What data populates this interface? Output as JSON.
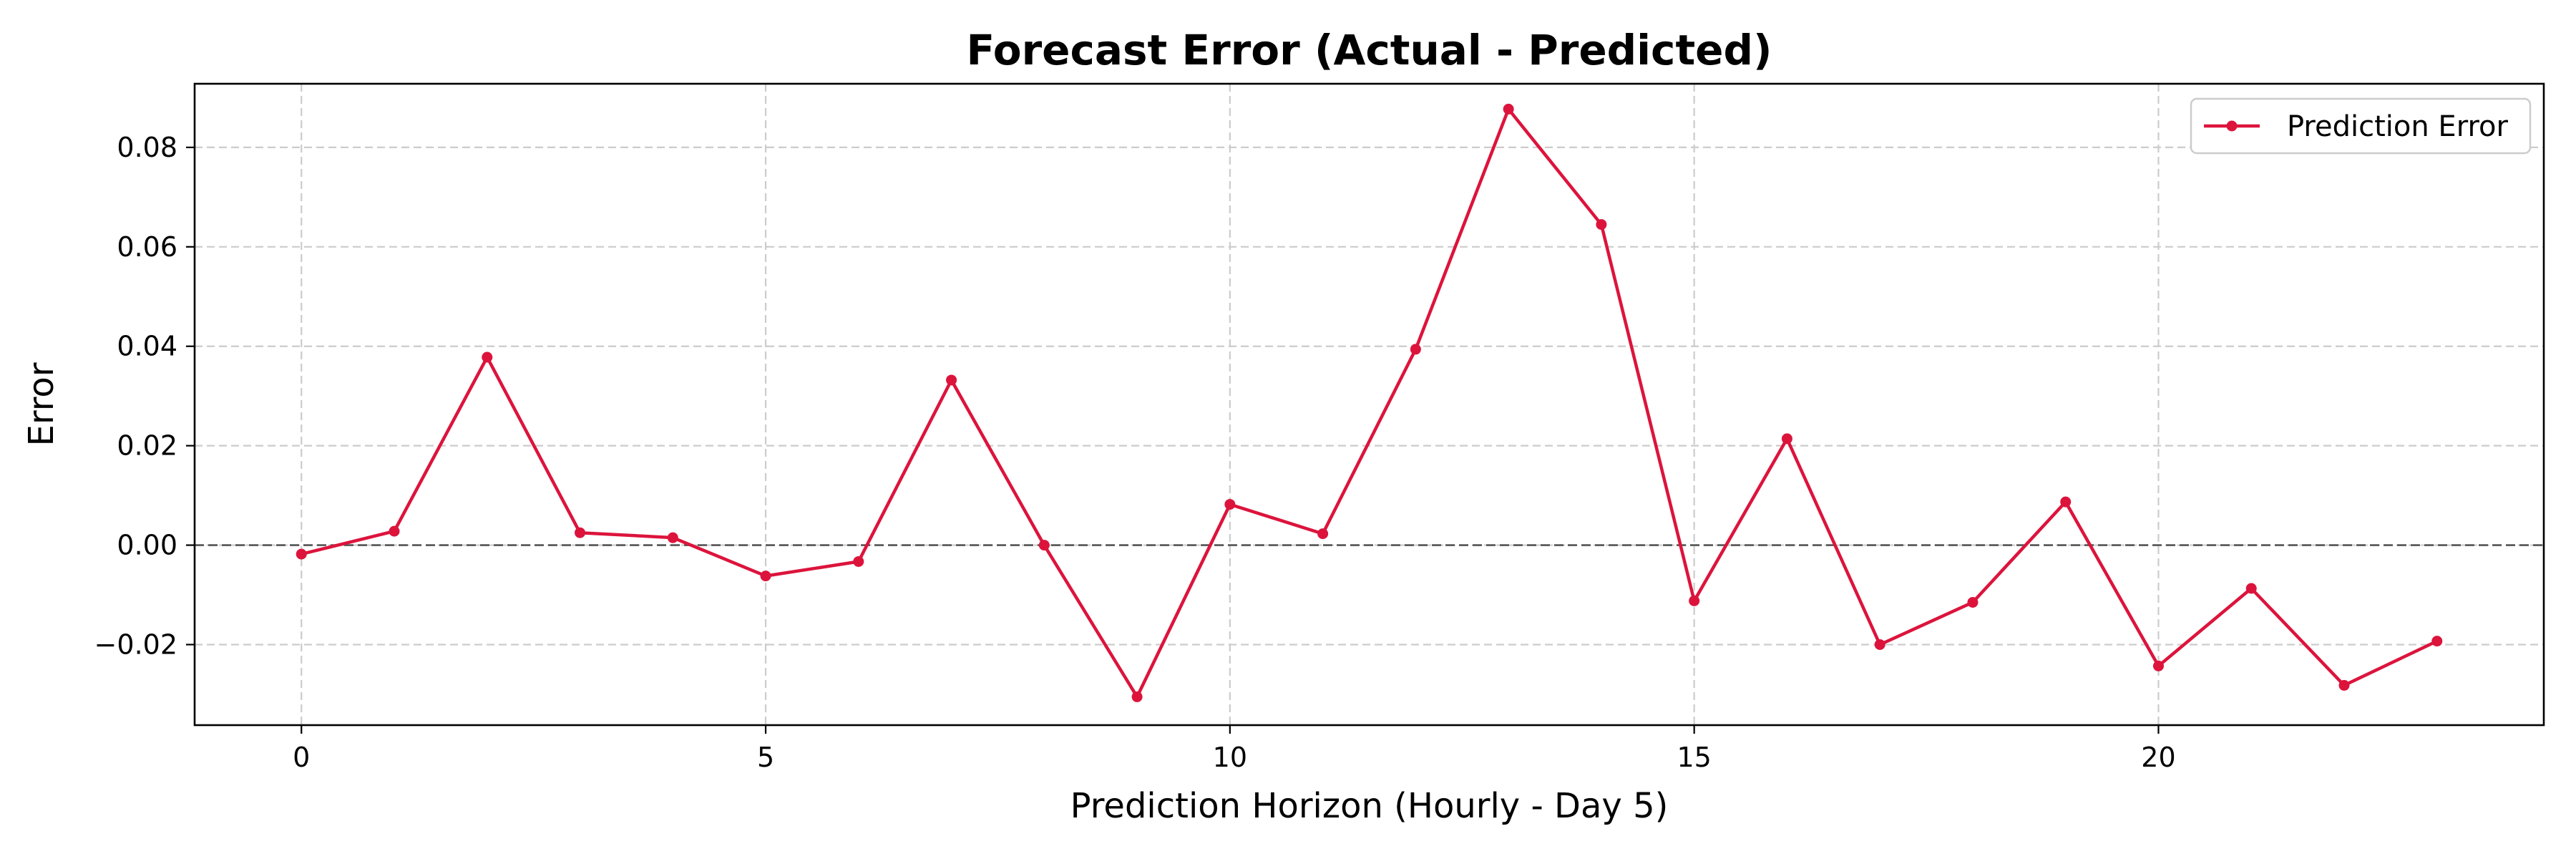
{
  "chart_data": {
    "type": "line",
    "title": "Forecast Error (Actual - Predicted)",
    "xlabel": "Prediction Horizon (Hourly - Day 5)",
    "ylabel": "Error",
    "xlim": [
      -1.15,
      24.15
    ],
    "ylim": [
      -0.0362,
      0.0928
    ],
    "x_ticks": [
      0,
      5,
      10,
      15,
      20
    ],
    "y_ticks": [
      -0.02,
      0.0,
      0.02,
      0.04,
      0.06,
      0.08
    ],
    "x_tick_labels": [
      "0",
      "5",
      "10",
      "15",
      "20"
    ],
    "y_tick_labels": [
      "−0.02",
      "0.00",
      "0.02",
      "0.04",
      "0.06",
      "0.08"
    ],
    "grid": true,
    "reference_line": 0,
    "legend_position": "top-right",
    "series": [
      {
        "name": "Prediction Error",
        "color": "#dc143c",
        "marker": "circle",
        "x": [
          0,
          1,
          2,
          3,
          4,
          5,
          6,
          7,
          8,
          9,
          10,
          11,
          12,
          13,
          14,
          15,
          16,
          17,
          18,
          19,
          20,
          21,
          22,
          23
        ],
        "values": [
          -0.0018,
          0.0028,
          0.0378,
          0.0025,
          0.0015,
          -0.0062,
          -0.0033,
          0.0332,
          0.0,
          -0.0305,
          0.0082,
          0.0023,
          0.0394,
          0.0877,
          0.0645,
          -0.0112,
          0.0214,
          -0.02,
          -0.0115,
          0.0087,
          -0.0243,
          -0.0087,
          -0.0282,
          -0.0193
        ]
      }
    ]
  }
}
